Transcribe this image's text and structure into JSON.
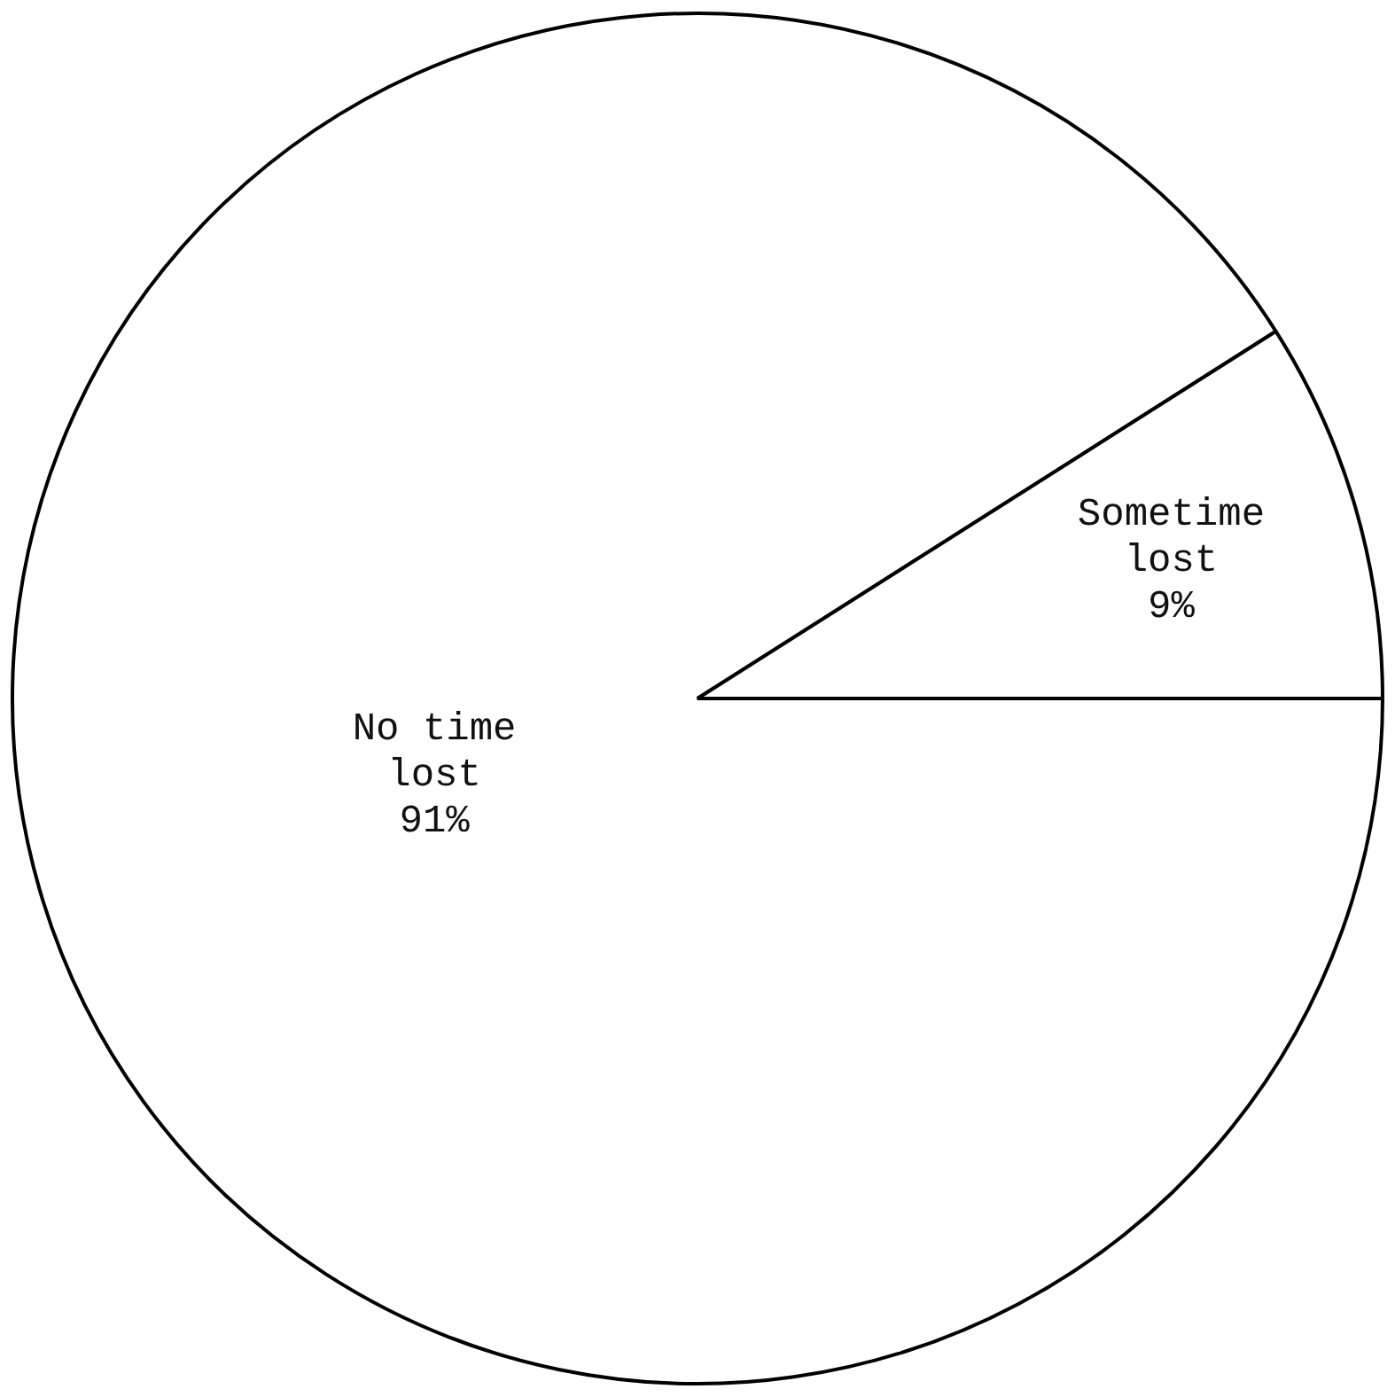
{
  "chart_data": {
    "type": "pie",
    "categories": [
      "No time lost",
      "Sometime lost"
    ],
    "values": [
      91,
      9
    ],
    "colors": [
      "#ffffff",
      "#ffffff"
    ],
    "value_labels": [
      "91%",
      "9%"
    ],
    "legend": false
  }
}
